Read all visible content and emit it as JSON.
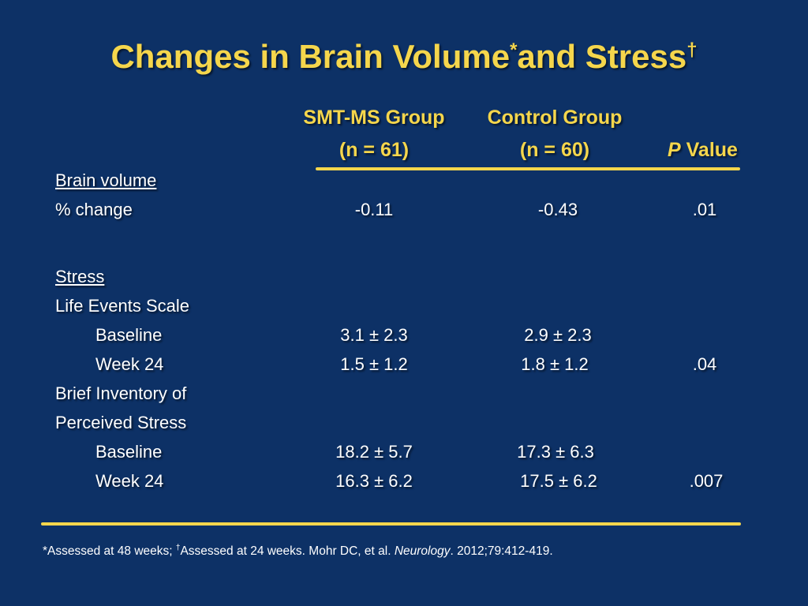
{
  "title": {
    "main": "Changes in Brain Volume",
    "mark1": "*",
    "middle": "and Stress",
    "mark2": "†"
  },
  "columns": {
    "group1": {
      "name": "SMT-MS Group",
      "n": "(n = 61)"
    },
    "group2": {
      "name": "Control Group",
      "n": "(n = 60)"
    },
    "pvalue": {
      "p": "P",
      "label": " Value"
    }
  },
  "rows": {
    "brain_volume": {
      "label": "Brain volume"
    },
    "pct_change": {
      "label": "% change",
      "g1": "-0.11",
      "g2": "-0.43",
      "p": ".01"
    },
    "stress": {
      "label": "Stress"
    },
    "life_events": {
      "label": "Life Events Scale"
    },
    "les_baseline": {
      "label": "Baseline",
      "g1": "3.1 ± 2.3",
      "g2": "2.9 ± 2.3",
      "p": ""
    },
    "les_week24": {
      "label": "Week 24",
      "g1": "1.5 ± 1.2",
      "g2": "1.8 ± 1.2",
      "p": ".04"
    },
    "bips_1": {
      "label": "Brief Inventory of"
    },
    "bips_2": {
      "label": "Perceived Stress"
    },
    "bips_baseline": {
      "label": "Baseline",
      "g1": "18.2 ± 5.7",
      "g2": "17.3 ± 6.3",
      "p": ""
    },
    "bips_week24": {
      "label": "Week 24",
      "g1": "16.3 ± 6.2",
      "g2": "17.5 ± 6.2",
      "p": ".007"
    }
  },
  "footnote": {
    "mark1": "*",
    "text1": "Assessed at 48 weeks; ",
    "mark2": "†",
    "text2": "Assessed at 24 weeks. Mohr DC, et al. ",
    "journal": "Neurology",
    "citation": ". 2012;79:412-419."
  },
  "colors": {
    "background": "#0d3166",
    "accent": "#f5d64c",
    "text": "#ffffff"
  }
}
